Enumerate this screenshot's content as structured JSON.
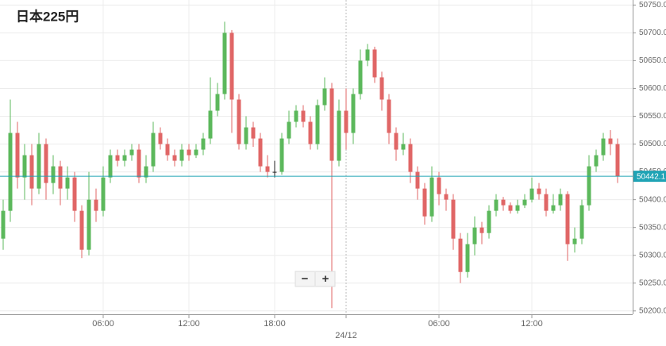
{
  "chart_data": {
    "type": "candlestick",
    "title": "日本225円",
    "categories": [
      null,
      null,
      null,
      null,
      null,
      null,
      null,
      null,
      null,
      null,
      null,
      null,
      null,
      null,
      "06:00",
      null,
      null,
      null,
      null,
      null,
      null,
      null,
      null,
      null,
      null,
      null,
      "12:00",
      null,
      null,
      null,
      null,
      null,
      null,
      null,
      null,
      null,
      null,
      null,
      "18:00",
      null,
      null,
      null,
      null,
      null,
      null,
      null,
      null,
      null,
      "24/12",
      null,
      null,
      null,
      null,
      null,
      null,
      null,
      null,
      null,
      null,
      null,
      null,
      "06:00",
      null,
      null,
      null,
      null,
      null,
      null,
      null,
      null,
      null,
      null,
      null,
      null,
      "12:00",
      null,
      null,
      null,
      null,
      null,
      null,
      null,
      null,
      null,
      null,
      null,
      null
    ],
    "open": [
      50330,
      50380,
      50520,
      50440,
      50480,
      50420,
      50500,
      50430,
      50460,
      50420,
      50440,
      50380,
      50310,
      50400,
      50380,
      50440,
      50480,
      50470,
      50480,
      50490,
      50440,
      50460,
      50520,
      50500,
      50480,
      50470,
      50490,
      50480,
      50490,
      50510,
      50560,
      50590,
      50700,
      50580,
      50500,
      50530,
      50510,
      50460,
      50450,
      50450,
      50510,
      50540,
      50560,
      50540,
      50500,
      50570,
      50600,
      50470,
      50560,
      50520,
      50590,
      50650,
      50670,
      50620,
      50580,
      50520,
      50490,
      50500,
      50450,
      50420,
      50370,
      50440,
      50410,
      50400,
      50330,
      50270,
      50320,
      50350,
      50340,
      50380,
      50400,
      50390,
      50380,
      50390,
      50400,
      50420,
      50410,
      50380,
      50390,
      50410,
      50320,
      50330,
      50390,
      50460,
      50480,
      50510,
      50500
    ],
    "high": [
      50400,
      50580,
      50540,
      50500,
      50500,
      50520,
      50510,
      50480,
      50470,
      50460,
      50450,
      50390,
      50450,
      50420,
      50460,
      50490,
      50490,
      50490,
      50500,
      50500,
      50480,
      50540,
      50530,
      50510,
      50490,
      50500,
      50500,
      50500,
      50520,
      50620,
      50610,
      50720,
      50705,
      50590,
      50550,
      50540,
      50520,
      50480,
      50470,
      50520,
      50560,
      50570,
      50570,
      50550,
      50580,
      50620,
      50610,
      50580,
      50600,
      50600,
      50670,
      50680,
      50675,
      50630,
      50590,
      50530,
      50520,
      50510,
      50460,
      50430,
      50460,
      50450,
      50420,
      50410,
      50340,
      50340,
      50370,
      50360,
      50390,
      50410,
      50405,
      50395,
      50400,
      50410,
      50440,
      50430,
      50420,
      50410,
      50420,
      50415,
      50350,
      50400,
      50480,
      50490,
      50520,
      50525,
      50510
    ],
    "low": [
      50310,
      50360,
      50420,
      50400,
      50390,
      50410,
      50400,
      50410,
      50390,
      50400,
      50360,
      50295,
      50300,
      50360,
      50370,
      50430,
      50460,
      50460,
      50470,
      50430,
      50430,
      50450,
      50490,
      50470,
      50460,
      50460,
      50470,
      50475,
      50480,
      50500,
      50550,
      50580,
      50520,
      50490,
      50490,
      50495,
      50450,
      50440,
      50440,
      50445,
      50500,
      50530,
      50530,
      50490,
      50490,
      50560,
      50205,
      50460,
      50490,
      50500,
      50580,
      50640,
      50610,
      50560,
      50500,
      50470,
      50480,
      50430,
      50400,
      50355,
      50360,
      50390,
      50380,
      50310,
      50250,
      50260,
      50300,
      50320,
      50330,
      50370,
      50380,
      50375,
      50375,
      50385,
      50395,
      50400,
      50370,
      50375,
      50380,
      50290,
      50305,
      50320,
      50380,
      50450,
      50470,
      50480,
      50430
    ],
    "close": [
      50380,
      50520,
      50440,
      50480,
      50420,
      50500,
      50430,
      50460,
      50420,
      50440,
      50380,
      50310,
      50400,
      50380,
      50440,
      50480,
      50470,
      50480,
      50490,
      50440,
      50460,
      50520,
      50500,
      50480,
      50470,
      50490,
      50480,
      50490,
      50510,
      50560,
      50590,
      50700,
      50580,
      50500,
      50530,
      50510,
      50460,
      50450,
      50450,
      50510,
      50540,
      50560,
      50540,
      50500,
      50570,
      50600,
      50470,
      50560,
      50520,
      50590,
      50650,
      50670,
      50620,
      50580,
      50520,
      50490,
      50500,
      50450,
      50420,
      50370,
      50440,
      50410,
      50400,
      50330,
      50270,
      50320,
      50350,
      50340,
      50380,
      50400,
      50390,
      50380,
      50390,
      50400,
      50420,
      50410,
      50380,
      50390,
      50410,
      50320,
      50330,
      50390,
      50460,
      50480,
      50510,
      50500,
      50442.1
    ],
    "up_color": "#5cb85c",
    "down_color": "#e06666",
    "last_price": 50442.1,
    "last_price_color": "#1fa3b5",
    "ylim": [
      50194,
      50760
    ],
    "yticks": [
      {
        "value": 50200,
        "label": "50200.0"
      },
      {
        "value": 50250,
        "label": "50250.0"
      },
      {
        "value": 50300,
        "label": "50300.0"
      },
      {
        "value": 50350,
        "label": "50350.0"
      },
      {
        "value": 50400,
        "label": "50400.0"
      },
      {
        "value": 50450,
        "label": "50450.0"
      },
      {
        "value": 50500,
        "label": "50500.0"
      },
      {
        "value": 50550,
        "label": "50550.0"
      },
      {
        "value": 50600,
        "label": "50600.0"
      },
      {
        "value": 50650,
        "label": "50650.0"
      },
      {
        "value": 50700,
        "label": "50700.0"
      },
      {
        "value": 50750,
        "label": "50750.0"
      }
    ],
    "grid": true,
    "zoom_controls": [
      "−",
      "+"
    ]
  }
}
